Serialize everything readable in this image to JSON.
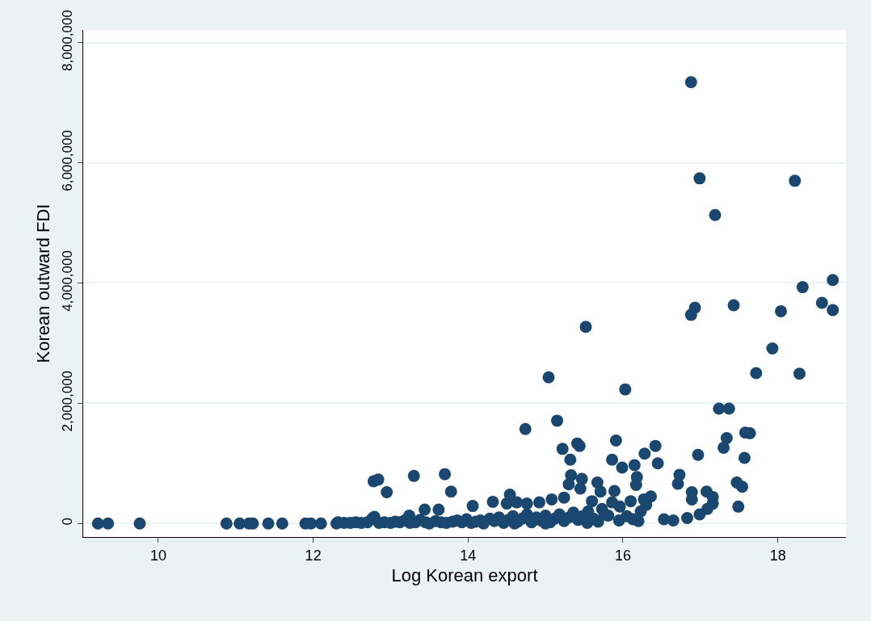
{
  "chart_data": {
    "type": "scatter",
    "xlabel": "Log Korean export",
    "ylabel": "Korean outward FDI",
    "x": [
      16.88,
      16.99,
      18.22,
      17.19,
      18.71,
      18.32,
      18.57,
      17.43,
      16.93,
      18.04,
      18.71,
      16.88,
      15.52,
      17.93,
      17.72,
      18.28,
      15.04,
      16.03,
      17.24,
      17.37,
      15.15,
      14.74,
      17.58,
      17.64,
      17.34,
      15.91,
      15.41,
      15.44,
      15.22,
      16.42,
      17.3,
      16.28,
      16.97,
      15.32,
      15.86,
      17.57,
      16.15,
      15.99,
      16.45,
      16.18,
      16.17,
      16.73,
      16.71,
      17.47,
      17.54,
      17.49,
      16.89,
      16.89,
      17.08,
      17.16,
      17.16,
      17.09,
      16.99,
      16.83,
      16.53,
      16.65,
      15.89,
      15.33,
      15.47,
      15.3,
      15.45,
      15.67,
      15.71,
      15.24,
      14.54,
      14.32,
      14.06,
      16.36,
      16.27,
      16.3,
      16.23,
      16.13,
      16.1,
      15.96,
      15.86,
      15.81,
      15.73,
      15.6,
      15.54,
      15.08,
      14.92,
      14.76,
      14.63,
      14.5,
      12.78,
      12.84,
      12.95,
      13.3,
      13.7,
      13.78,
      13.44,
      13.62,
      13.24,
      12.79,
      9.22,
      9.35,
      9.76,
      10.88,
      11.05,
      11.17,
      11.22,
      11.42,
      11.6,
      11.9,
      11.97,
      12.1,
      12.3,
      12.32,
      12.4,
      12.48,
      12.55,
      12.62,
      12.7,
      12.76,
      12.85,
      12.92,
      13.0,
      13.06,
      13.12,
      13.18,
      13.25,
      13.32,
      13.38,
      13.45,
      13.58,
      13.65,
      13.72,
      13.8,
      13.86,
      13.92,
      13.98,
      14.04,
      14.1,
      14.16,
      14.28,
      14.34,
      14.4,
      14.46,
      14.52,
      14.58,
      14.64,
      14.7,
      14.76,
      14.82,
      14.88,
      14.94,
      15.0,
      15.06,
      15.12,
      15.18,
      15.24,
      15.3,
      15.36,
      15.42,
      15.48,
      15.55,
      15.62,
      15.68,
      15.76,
      15.95,
      16.05,
      16.2,
      14.2,
      14.6,
      15.0,
      13.5
    ],
    "values": [
      7340000,
      5740000,
      5700000,
      5130000,
      4050000,
      3930000,
      3670000,
      3630000,
      3590000,
      3530000,
      3550000,
      3470000,
      3270000,
      2910000,
      2500000,
      2490000,
      2430000,
      2230000,
      1910000,
      1910000,
      1710000,
      1570000,
      1510000,
      1500000,
      1420000,
      1380000,
      1330000,
      1290000,
      1240000,
      1290000,
      1260000,
      1160000,
      1140000,
      1060000,
      1060000,
      1090000,
      970000,
      930000,
      1000000,
      770000,
      640000,
      810000,
      660000,
      680000,
      610000,
      280000,
      520000,
      400000,
      530000,
      440000,
      330000,
      240000,
      150000,
      90000,
      70000,
      50000,
      540000,
      800000,
      740000,
      650000,
      580000,
      680000,
      530000,
      430000,
      480000,
      360000,
      290000,
      450000,
      400000,
      310000,
      200000,
      70000,
      370000,
      280000,
      350000,
      130000,
      240000,
      370000,
      10000,
      400000,
      350000,
      330000,
      350000,
      330000,
      700000,
      730000,
      520000,
      790000,
      820000,
      530000,
      230000,
      230000,
      130000,
      110000,
      0,
      0,
      0,
      0,
      0,
      0,
      0,
      0,
      0,
      0,
      0,
      0,
      0,
      20000,
      10000,
      10000,
      20000,
      10000,
      20000,
      80000,
      10000,
      20000,
      10000,
      30000,
      20000,
      50000,
      10000,
      20000,
      60000,
      20000,
      40000,
      20000,
      10000,
      30000,
      50000,
      20000,
      70000,
      10000,
      30000,
      50000,
      80000,
      40000,
      100000,
      10000,
      60000,
      120000,
      30000,
      80000,
      150000,
      20000,
      100000,
      50000,
      130000,
      20000,
      80000,
      150000,
      40000,
      100000,
      180000,
      60000,
      120000,
      200000,
      80000,
      30000,
      150000,
      50000,
      120000,
      40000,
      0,
      0,
      0,
      0
    ],
    "color": "#1a476f",
    "marker": "circle",
    "grid": "y",
    "legend": false,
    "xlim": [
      9.03,
      18.88
    ],
    "ylim": [
      -226000,
      8210000
    ],
    "xticks": [
      10,
      12,
      14,
      16,
      18
    ],
    "yticks": [
      {
        "value": 0,
        "label": "0"
      },
      {
        "value": 2000000,
        "label": "2,000,000"
      },
      {
        "value": 4000000,
        "label": "4,000,000"
      },
      {
        "value": 6000000,
        "label": "6,000,000"
      },
      {
        "value": 8000000,
        "label": "8,000,000"
      }
    ]
  }
}
